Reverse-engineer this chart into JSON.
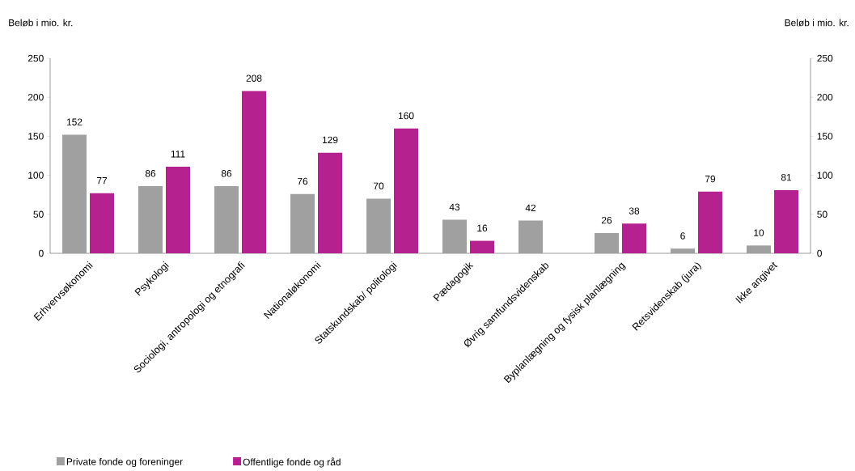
{
  "chart_data": {
    "type": "bar",
    "annotations": [
      "Beløb i mio. kr.",
      "Beløb i mio. kr."
    ],
    "categories": [
      "Erhvervsøkonomi",
      "Psykologi",
      "Sociologi, antropologi og etnografi",
      "Nationaløkonomi",
      "Statskundskab/ politologi",
      "Pædagogik",
      "Øvrig samfundsvidenskab",
      "Byplanlægning og fysisk planlægning",
      "Retsvidenskab (jura)",
      "Ikke angivet"
    ],
    "series": [
      {
        "name": "Private fonde og foreninger",
        "color": "#a0a0a0",
        "values": [
          152,
          86,
          86,
          76,
          70,
          43,
          42,
          26,
          6,
          10
        ]
      },
      {
        "name": "Offentlige fonde og råd",
        "color": "#b5218f",
        "values": [
          77,
          111,
          208,
          129,
          160,
          16,
          null,
          38,
          79,
          81
        ]
      }
    ],
    "ylim": [
      0,
      250
    ],
    "yticks": [
      0,
      50,
      100,
      150,
      200,
      250
    ],
    "y2lim": [
      0,
      250
    ],
    "y2ticks": [
      0,
      50,
      100,
      150,
      200,
      250
    ],
    "data_labels": true,
    "legend": "bottom",
    "grid": false
  }
}
